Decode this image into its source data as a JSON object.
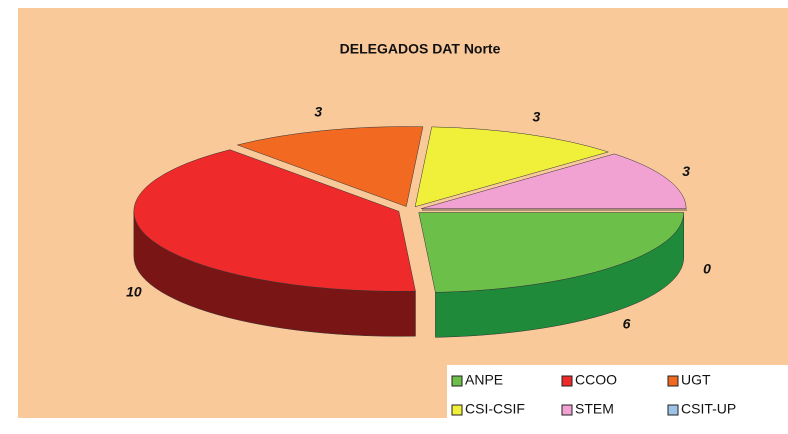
{
  "chart_data": {
    "type": "pie3d",
    "title": "DELEGADOS DAT Norte",
    "categories": [
      "ANPE",
      "CCOO",
      "UGT",
      "CSI-CSIF",
      "STEM",
      "CSIT-UP"
    ],
    "values": [
      6,
      10,
      3,
      3,
      3,
      0
    ],
    "colors": [
      "#6cc04a",
      "#ee2a2a",
      "#f26a22",
      "#f0f03a",
      "#f2a2d2",
      "#9cc4e8"
    ],
    "side_colors": [
      "#1e8a3a",
      "#7a1515",
      "#8a3a10",
      "#a0a020",
      "#a06080",
      "#4a6a90"
    ],
    "legend": "bottom-right"
  }
}
